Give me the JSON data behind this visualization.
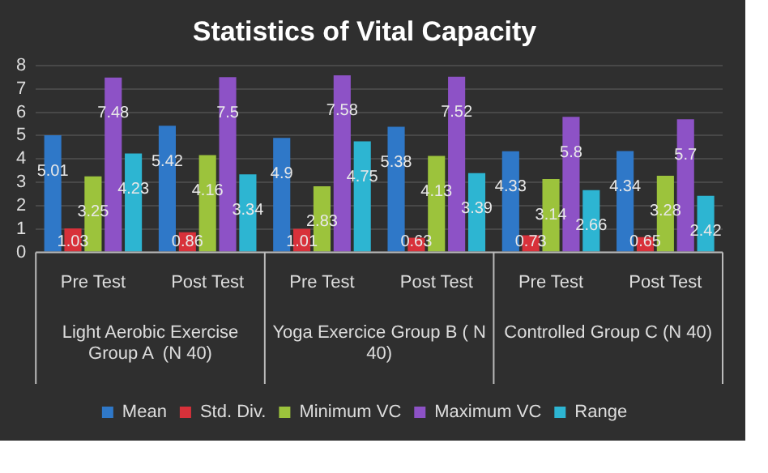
{
  "chart_data": {
    "type": "bar",
    "title": "Statistics of Vital Capacity",
    "categories": [
      "Pre Test",
      "Post Test",
      "Pre Test",
      "Post Test",
      "Pre Test",
      "Post Test"
    ],
    "series": [
      {
        "name": "Mean",
        "color": "#2f78c8",
        "values": [
          5.01,
          5.42,
          4.9,
          5.38,
          4.33,
          4.34
        ]
      },
      {
        "name": "Std. Div.",
        "color": "#d8313a",
        "values": [
          1.03,
          0.86,
          1.01,
          0.63,
          0.73,
          0.65
        ]
      },
      {
        "name": "Minimum VC",
        "color": "#9cc33c",
        "values": [
          3.25,
          4.16,
          2.83,
          4.13,
          3.14,
          3.28
        ]
      },
      {
        "name": "Maximum VC",
        "color": "#8d52c6",
        "values": [
          7.48,
          7.5,
          7.58,
          7.52,
          5.8,
          5.7
        ]
      },
      {
        "name": "Range",
        "color": "#2db5d2",
        "values": [
          4.23,
          3.34,
          4.75,
          3.39,
          2.66,
          2.42
        ]
      }
    ],
    "annotations": [
      "Light Aerobic Exercise Group A  (N 40)",
      "Yoga Exercice Group B ( N 40)",
      "Controlled Group C (N 40)"
    ],
    "ylim": [
      0,
      8
    ],
    "yticks": [
      0,
      1,
      2,
      3,
      4,
      5,
      6,
      7,
      8
    ],
    "grid": "y",
    "legend": "bottom",
    "data_labels": true
  }
}
